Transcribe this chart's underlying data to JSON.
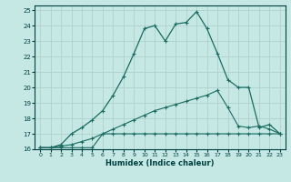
{
  "xlabel": "Humidex (Indice chaleur)",
  "bg_color": "#c5e8e5",
  "grid_color": "#b0d0cc",
  "line_color": "#1a6b60",
  "xlim_min": -0.5,
  "xlim_max": 23.5,
  "ylim_min": 16.0,
  "ylim_max": 25.3,
  "x_ticks": [
    0,
    1,
    2,
    3,
    4,
    5,
    6,
    7,
    8,
    9,
    10,
    11,
    12,
    13,
    14,
    15,
    16,
    17,
    18,
    19,
    20,
    21,
    22,
    23
  ],
  "y_ticks": [
    16,
    17,
    18,
    19,
    20,
    21,
    22,
    23,
    24,
    25
  ],
  "line1_x": [
    0,
    1,
    2,
    3,
    4,
    5,
    6,
    7,
    8,
    9,
    10,
    11,
    12,
    13,
    14,
    15,
    16,
    17,
    18,
    19,
    20,
    21,
    22,
    23
  ],
  "line1_y": [
    16.1,
    16.1,
    16.1,
    16.1,
    16.1,
    16.1,
    17.0,
    17.0,
    17.0,
    17.0,
    17.0,
    17.0,
    17.0,
    17.0,
    17.0,
    17.0,
    17.0,
    17.0,
    17.0,
    17.0,
    17.0,
    17.0,
    17.0,
    17.0
  ],
  "line2_x": [
    0,
    1,
    2,
    3,
    4,
    5,
    6,
    7,
    8,
    9,
    10,
    11,
    12,
    13,
    14,
    15,
    16,
    17,
    18,
    19,
    20,
    21,
    22,
    23
  ],
  "line2_y": [
    16.1,
    16.1,
    16.2,
    16.3,
    16.5,
    16.7,
    17.0,
    17.3,
    17.6,
    17.9,
    18.2,
    18.5,
    18.7,
    18.9,
    19.1,
    19.3,
    19.5,
    19.8,
    18.7,
    17.5,
    17.4,
    17.5,
    17.3,
    17.0
  ],
  "line3_x": [
    0,
    1,
    2,
    3,
    4,
    5,
    6,
    7,
    8,
    9,
    10,
    11,
    12,
    13,
    14,
    15,
    16,
    17,
    18,
    19,
    20,
    21,
    22,
    23
  ],
  "line3_y": [
    16.1,
    16.1,
    16.3,
    17.0,
    17.4,
    17.9,
    18.5,
    19.5,
    20.7,
    22.2,
    23.8,
    24.0,
    23.0,
    24.1,
    24.2,
    24.9,
    23.8,
    22.2,
    20.5,
    20.0,
    20.0,
    17.4,
    17.6,
    17.0
  ]
}
